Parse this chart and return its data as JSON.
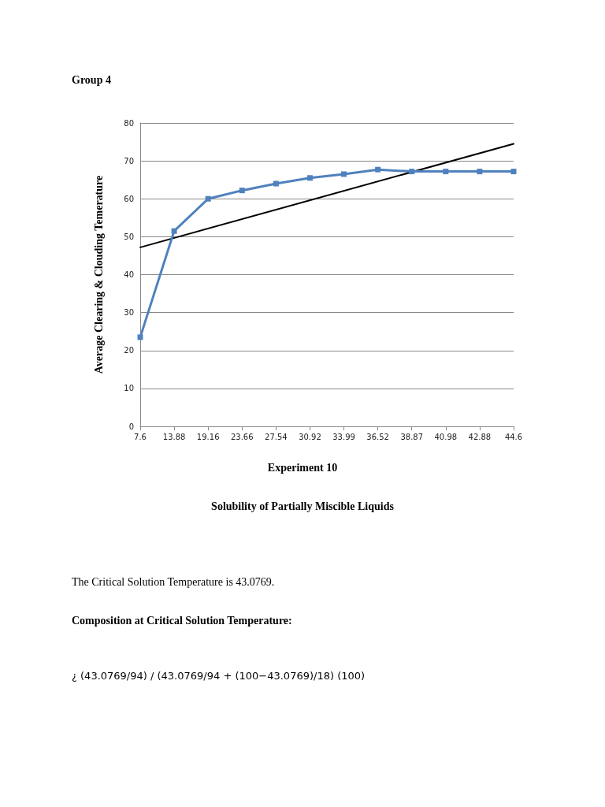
{
  "chart_data": {
    "type": "line",
    "title": "Group 4",
    "subtitle": "Solubility of Partially Miscible Liquids",
    "xlabel": "Experiment 10",
    "ylabel": "Average Clearing & Clouding Temerature",
    "categories": [
      "7.6",
      "13.88",
      "19.16",
      "23.66",
      "27.54",
      "30.92",
      "33.99",
      "36.52",
      "38.87",
      "40.98",
      "42.88",
      "44.6"
    ],
    "series": [
      {
        "color": "#4f81bd",
        "marker": "square",
        "values": [
          23.5,
          51.5,
          60,
          62.2,
          64,
          65.5,
          66.5,
          67.7,
          67.2,
          67.2,
          67.2,
          67.2
        ]
      },
      {
        "type": "line",
        "color": "#000000",
        "marker": "none",
        "x": [
          "7.6",
          "44.6"
        ],
        "values": [
          47.2,
          74.5
        ]
      }
    ],
    "ylim": [
      0,
      80
    ],
    "yticks": [
      0,
      10,
      20,
      30,
      40,
      50,
      60,
      70,
      80
    ],
    "grid": "y",
    "annotations": [
      "The Critical Solution Temperature is 43.0769.",
      "Composition at Critical Solution Temperature:",
      "¿ (43.0769/94) / (43.0769/94 + (100−43.0769)/18) (100)"
    ]
  }
}
